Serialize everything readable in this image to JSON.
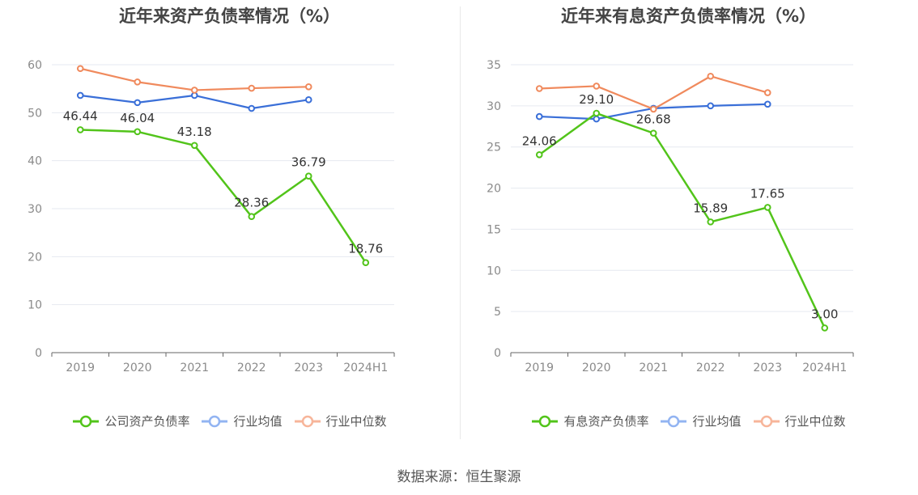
{
  "colors": {
    "main": "#52c41a",
    "avg": "#3a6fd8",
    "median": "#f08a5d",
    "avg_legend": "#92b4f2",
    "median_legend": "#f7b59a",
    "grid": "#e6e9f0",
    "axis": "#666666"
  },
  "source": "数据来源：恒生聚源",
  "chart_data": [
    {
      "type": "line",
      "title": "近年来资产负债率情况（%）",
      "categories": [
        "2019",
        "2020",
        "2021",
        "2022",
        "2023",
        "2024H1"
      ],
      "ylim": [
        0,
        60
      ],
      "yticks": [
        0,
        10,
        20,
        30,
        40,
        50,
        60
      ],
      "ytick_labels": [
        "0",
        "10",
        "20",
        "30",
        "40",
        "50",
        "60"
      ],
      "grid": true,
      "legend_position": "bottom",
      "series": [
        {
          "name": "公司资产负债率",
          "values": [
            46.44,
            46.04,
            43.18,
            28.36,
            36.79,
            18.76
          ],
          "labels": [
            "46.44",
            "46.04",
            "43.18",
            "28.36",
            "36.79",
            "18.76"
          ]
        },
        {
          "name": "行业均值",
          "values": [
            53.6,
            52.1,
            53.6,
            50.9,
            52.7,
            null
          ]
        },
        {
          "name": "行业中位数",
          "values": [
            59.2,
            56.4,
            54.7,
            55.1,
            55.4,
            null
          ]
        }
      ]
    },
    {
      "type": "line",
      "title": "近年来有息资产负债率情况（%）",
      "categories": [
        "2019",
        "2020",
        "2021",
        "2022",
        "2023",
        "2024H1"
      ],
      "ylim": [
        0,
        35
      ],
      "yticks": [
        0,
        5,
        10,
        15,
        20,
        25,
        30,
        35
      ],
      "ytick_labels": [
        "0",
        "5",
        "10",
        "15",
        "20",
        "25",
        "30",
        "35"
      ],
      "grid": true,
      "legend_position": "bottom",
      "series": [
        {
          "name": "有息资产负债率",
          "values": [
            24.06,
            29.1,
            26.68,
            15.89,
            17.65,
            3.0
          ],
          "labels": [
            "24.06",
            "29.10",
            "26.68",
            "15.89",
            "17.65",
            "3.00"
          ]
        },
        {
          "name": "行业均值",
          "values": [
            28.7,
            28.4,
            29.7,
            30.0,
            30.2,
            null
          ]
        },
        {
          "name": "行业中位数",
          "values": [
            32.1,
            32.4,
            29.6,
            33.6,
            31.6,
            null
          ]
        }
      ]
    }
  ]
}
